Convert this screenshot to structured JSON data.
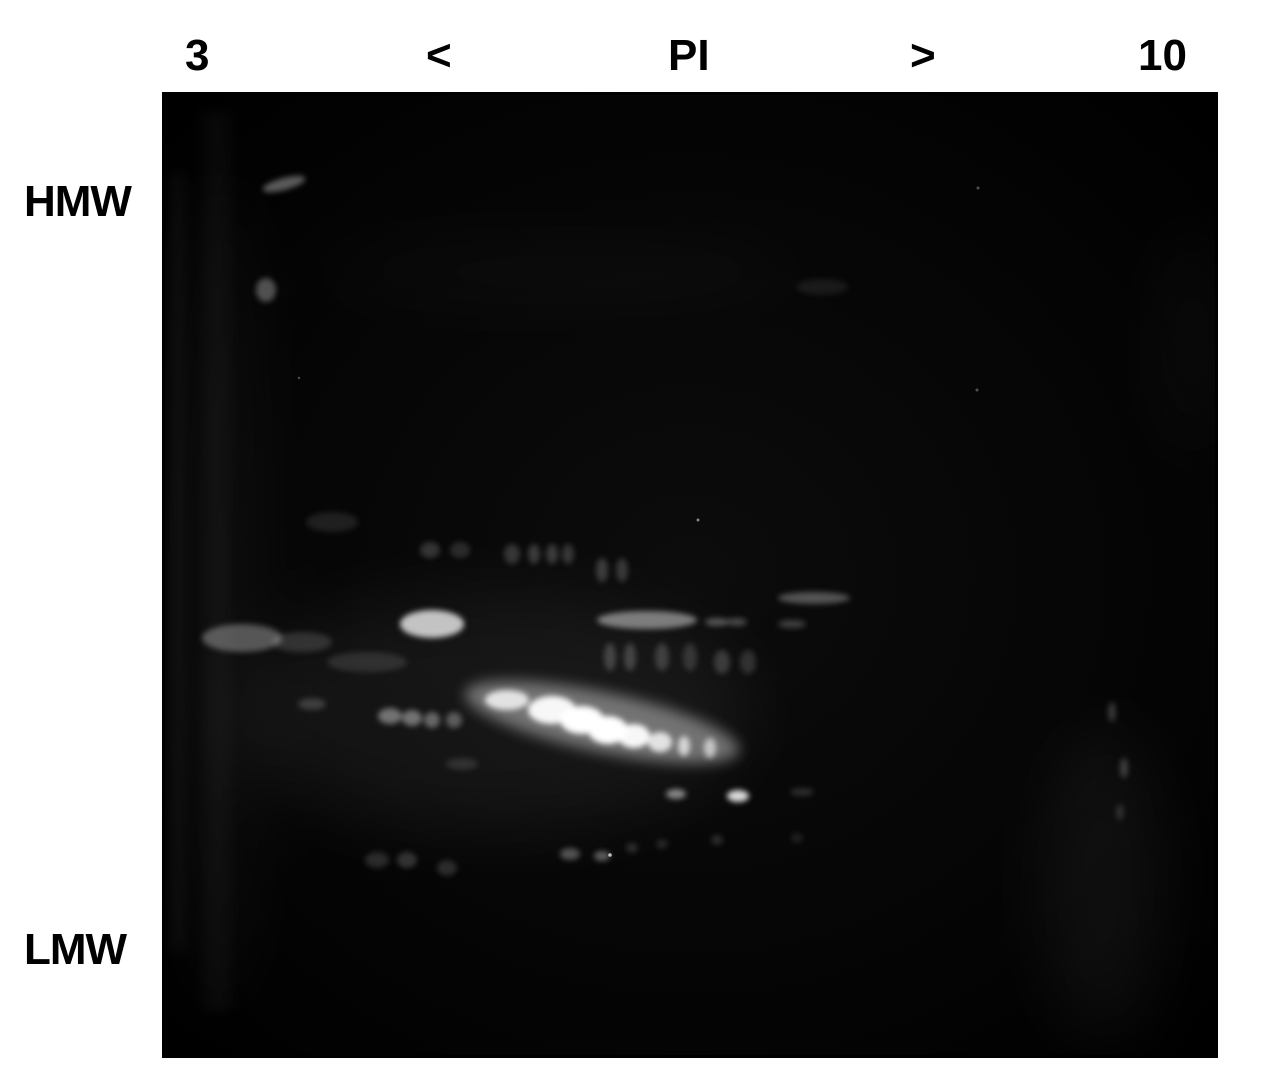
{
  "ph_axis": {
    "min_label": "3",
    "left_arrow": "<",
    "center_label": "PI",
    "right_arrow": ">",
    "max_label": "10"
  },
  "mw_axis": {
    "top_label": "HMW",
    "bottom_label": "LMW"
  },
  "gel": {
    "background_color": "#050505",
    "spot_color": "#ffffff"
  }
}
